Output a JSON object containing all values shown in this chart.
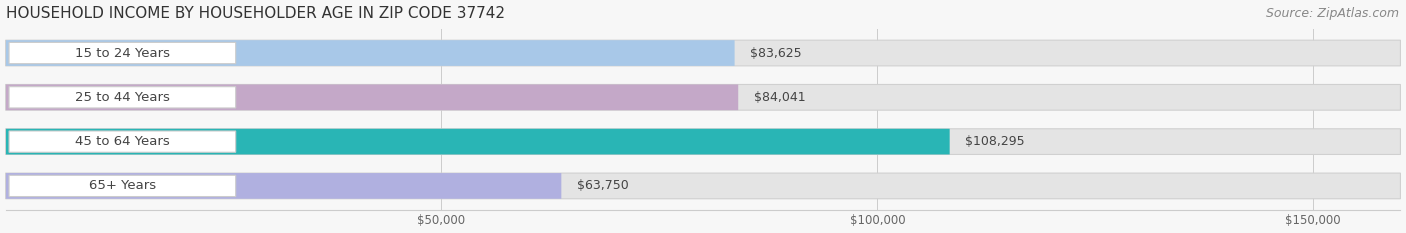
{
  "title": "HOUSEHOLD INCOME BY HOUSEHOLDER AGE IN ZIP CODE 37742",
  "source": "Source: ZipAtlas.com",
  "categories": [
    "15 to 24 Years",
    "25 to 44 Years",
    "45 to 64 Years",
    "65+ Years"
  ],
  "values": [
    83625,
    84041,
    108295,
    63750
  ],
  "value_labels": [
    "$83,625",
    "$84,041",
    "$108,295",
    "$63,750"
  ],
  "bar_colors": [
    "#a8c8e8",
    "#c4a8c8",
    "#29b5b5",
    "#b0b0e0"
  ],
  "background_color": "#f7f7f7",
  "bar_background_color": "#e4e4e4",
  "xlim": [
    0,
    160000
  ],
  "xticks": [
    50000,
    100000,
    150000
  ],
  "xtick_labels": [
    "$50,000",
    "$100,000",
    "$150,000"
  ],
  "title_fontsize": 11,
  "source_fontsize": 9,
  "label_fontsize": 9.5,
  "value_fontsize": 9,
  "tick_fontsize": 8.5,
  "bar_height": 0.58,
  "figsize": [
    14.06,
    2.33
  ],
  "dpi": 100
}
